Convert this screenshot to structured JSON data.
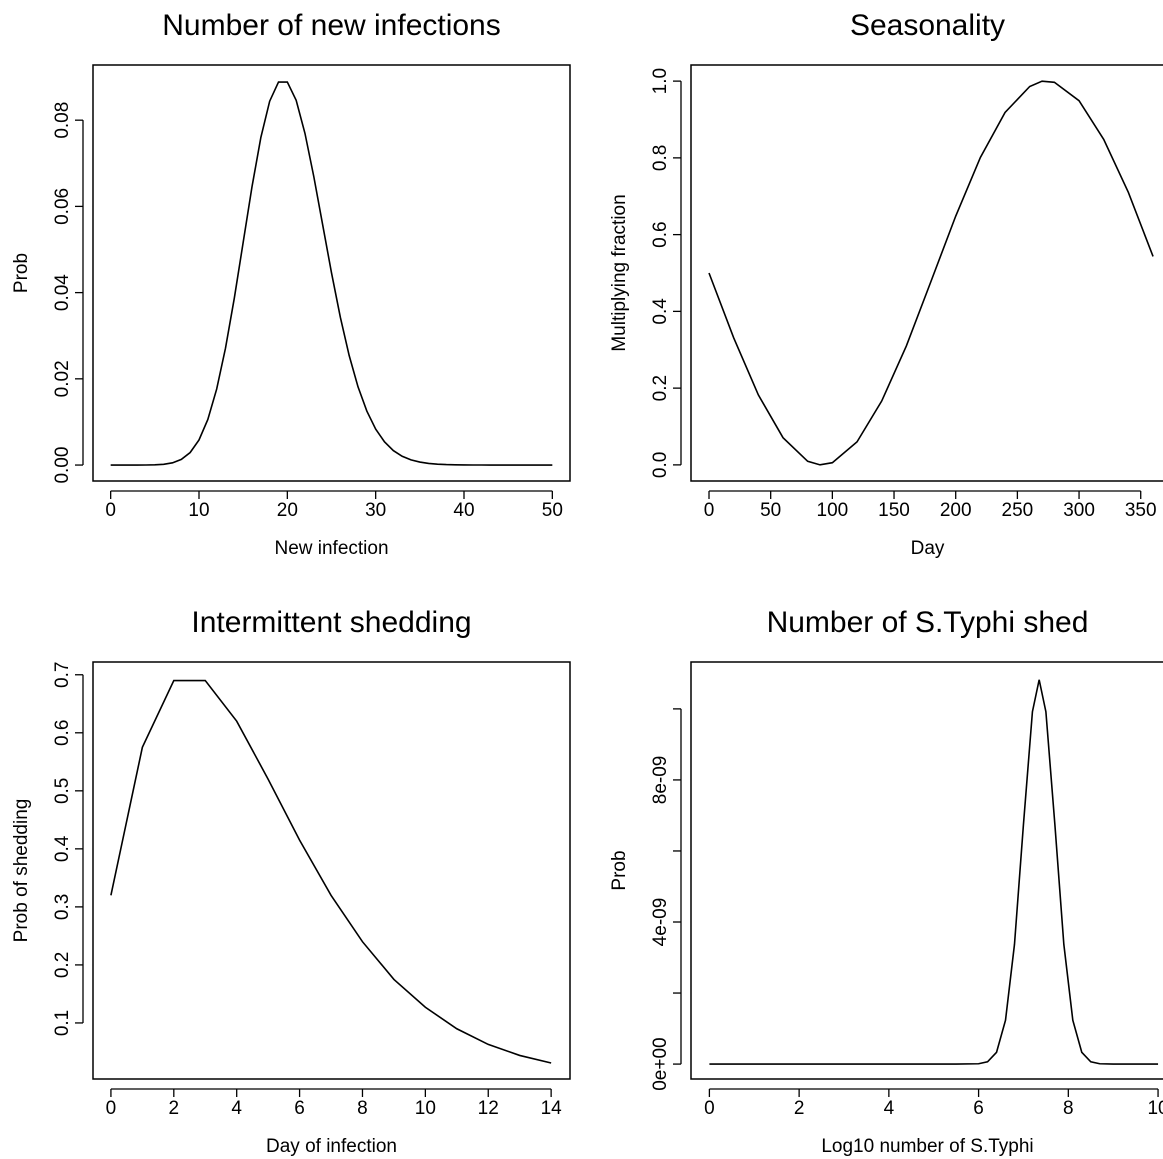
{
  "chart_data": [
    {
      "type": "line",
      "title": "Number of new infections",
      "xlabel": "New infection",
      "ylabel": "Prob",
      "x": [
        0,
        1,
        2,
        3,
        4,
        5,
        6,
        7,
        8,
        9,
        10,
        11,
        12,
        13,
        14,
        15,
        16,
        17,
        18,
        19,
        20,
        21,
        22,
        23,
        24,
        25,
        26,
        27,
        28,
        29,
        30,
        31,
        32,
        33,
        34,
        35,
        36,
        37,
        38,
        39,
        40,
        41,
        42,
        43,
        44,
        45,
        46,
        47,
        48,
        49,
        50
      ],
      "series": [
        {
          "color": "#000000",
          "values": [
            0,
            0,
            0,
            0,
            1e-05,
            5e-05,
            0.00018,
            0.00052,
            0.00131,
            0.00291,
            0.00582,
            0.01058,
            0.01763,
            0.02712,
            0.03874,
            0.05165,
            0.06456,
            0.07596,
            0.0844,
            0.08884,
            0.08884,
            0.08461,
            0.07691,
            0.06688,
            0.05573,
            0.04459,
            0.0343,
            0.02541,
            0.01815,
            0.01252,
            0.00834,
            0.00538,
            0.00336,
            0.00204,
            0.0012,
            0.00069,
            0.00038,
            0.00021,
            0.00011,
            6e-05,
            3e-05,
            1e-05,
            1e-05,
            0,
            0,
            0,
            0,
            0,
            0,
            0,
            0
          ]
        }
      ],
      "xlim": [
        -2,
        52
      ],
      "xticks": [
        0,
        10,
        20,
        30,
        40,
        50
      ],
      "ylim": [
        -0.0037,
        0.0928
      ],
      "yticks": [
        {
          "value": 0,
          "label": "0.00"
        },
        {
          "value": 0.02,
          "label": "0.02"
        },
        {
          "value": 0.04,
          "label": "0.04"
        },
        {
          "value": 0.06,
          "label": "0.06"
        },
        {
          "value": 0.08,
          "label": "0.08"
        }
      ]
    },
    {
      "type": "line",
      "title": "Seasonality",
      "xlabel": "Day",
      "ylabel": "Multiplying fraction",
      "x": [
        0,
        20,
        40,
        60,
        80,
        90,
        100,
        120,
        140,
        160,
        180,
        200,
        220,
        240,
        260,
        270,
        280,
        300,
        320,
        340,
        360
      ],
      "series": [
        {
          "color": "#000000",
          "values": [
            0.5,
            0.3312,
            0.1823,
            0.0708,
            0.0094,
            0.0001,
            0.0057,
            0.06,
            0.1663,
            0.31,
            0.4785,
            0.6482,
            0.8011,
            0.9182,
            0.986,
            0.9999,
            0.997,
            0.949,
            0.8481,
            0.7099,
            0.5431
          ]
        }
      ],
      "xlim": [
        -14.6,
        378.6
      ],
      "xticks": [
        0,
        50,
        100,
        150,
        200,
        250,
        300,
        350
      ],
      "ylim": [
        -0.042,
        1.042
      ],
      "yticks": [
        {
          "value": 0,
          "label": "0.0"
        },
        {
          "value": 0.2,
          "label": "0.2"
        },
        {
          "value": 0.4,
          "label": "0.4"
        },
        {
          "value": 0.6,
          "label": "0.6"
        },
        {
          "value": 0.8,
          "label": "0.8"
        },
        {
          "value": 1,
          "label": "1.0"
        }
      ]
    },
    {
      "type": "line",
      "title": "Intermittent shedding",
      "xlabel": "Day of infection",
      "ylabel": "Prob of shedding",
      "x": [
        0,
        1,
        2,
        3,
        4,
        5,
        6,
        7,
        8,
        9,
        10,
        11,
        12,
        13,
        14
      ],
      "series": [
        {
          "color": "#000000",
          "values": [
            0.32,
            0.575,
            0.69,
            0.69,
            0.62,
            0.52,
            0.415,
            0.32,
            0.24,
            0.175,
            0.127,
            0.09,
            0.063,
            0.044,
            0.031
          ]
        }
      ],
      "xlim": [
        -0.57,
        14.6
      ],
      "xticks": [
        0,
        2,
        4,
        6,
        8,
        10,
        12,
        14
      ],
      "ylim": [
        0.0034,
        0.722
      ],
      "yticks": [
        0.1,
        0.2,
        0.3,
        0.4,
        0.5,
        0.6,
        0.7
      ]
    },
    {
      "type": "line",
      "title": "Number of S.Typhi shed",
      "xlabel": "Log10 number of S.Typhi",
      "ylabel": "Prob",
      "x": [
        0,
        2,
        4,
        5.5,
        6,
        6.2,
        6.4,
        6.6,
        6.8,
        7,
        7.2,
        7.35,
        7.5,
        7.7,
        7.9,
        8.1,
        8.3,
        8.5,
        8.7,
        9,
        10
      ],
      "series": [
        {
          "color": "#000000",
          "values": [
            0,
            0,
            0,
            0,
            9.5e-12,
            6.6e-11,
            3.32e-10,
            1.236e-09,
            3.37e-09,
            6.75e-09,
            9.92e-09,
            1.082e-08,
            9.92e-09,
            6.75e-09,
            3.37e-09,
            1.236e-09,
            3.32e-10,
            6.6e-11,
            9.5e-12,
            0,
            0
          ]
        }
      ],
      "xlim": [
        -0.41,
        10.4
      ],
      "xticks": [
        0,
        2,
        4,
        6,
        8,
        10
      ],
      "ylim": [
        -4.2e-10,
        1.132e-08
      ],
      "yticks": [
        {
          "value": 0,
          "label": "0e+00"
        },
        {
          "value": 4e-09,
          "label": "4e-09"
        },
        {
          "value": 8e-09,
          "label": "8e-09"
        }
      ],
      "yticks_unlabeled": [
        2e-09,
        6e-09,
        1e-08
      ]
    }
  ]
}
